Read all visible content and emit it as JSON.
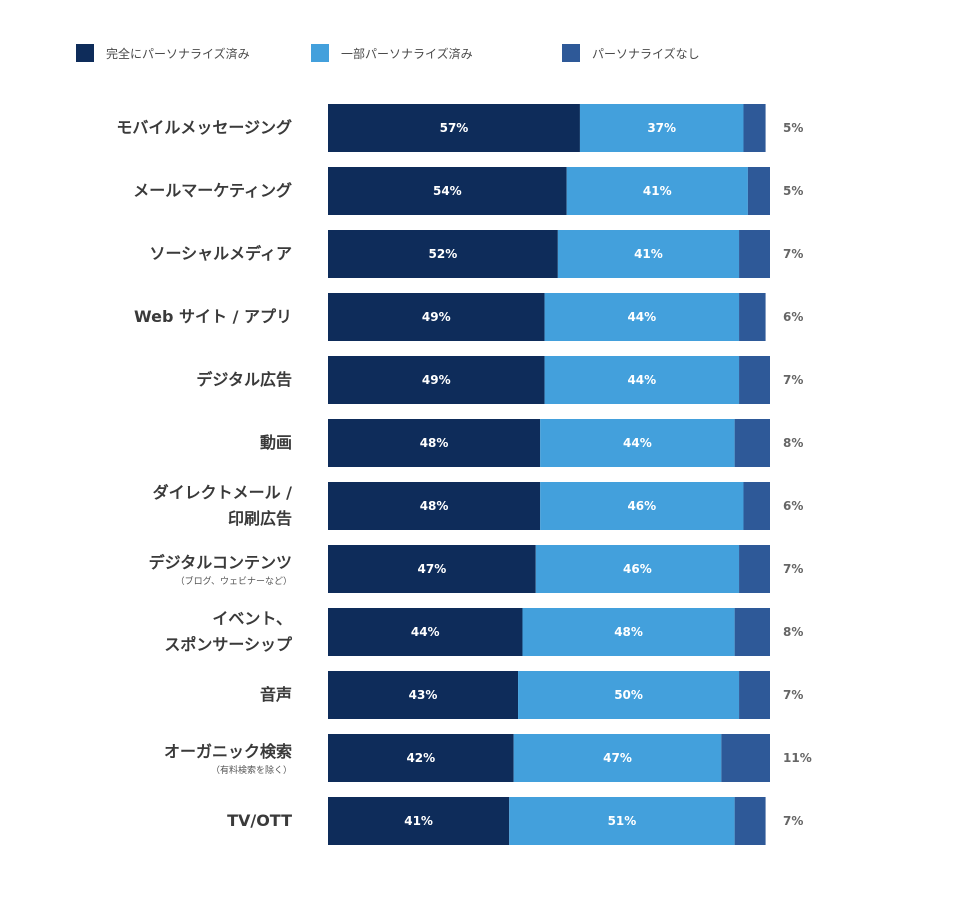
{
  "chart_data": {
    "type": "bar",
    "orientation": "horizontal",
    "stacked": true,
    "categories": [
      [
        "モバイルメッセージング"
      ],
      [
        "メールマーケティング"
      ],
      [
        "ソーシャルメディア"
      ],
      [
        "Web サイト / アプリ"
      ],
      [
        "デジタル広告"
      ],
      [
        "動画"
      ],
      [
        "ダイレクトメール /",
        "印刷広告"
      ],
      [
        "デジタルコンテンツ",
        "（ブログ、ウェビナーなど）"
      ],
      [
        "イベント、",
        "スポンサーシップ"
      ],
      [
        "音声"
      ],
      [
        "オーガニック検索",
        "（有料検索を除く）"
      ],
      [
        "TV/OTT"
      ]
    ],
    "category_sublabel_indices": [
      7,
      10
    ],
    "series": [
      {
        "name": "完全にパーソナライズ済み",
        "color": "#0e2c5a",
        "values": [
          57,
          54,
          52,
          49,
          49,
          48,
          48,
          47,
          44,
          43,
          42,
          41
        ]
      },
      {
        "name": "一部パーソナライズ済み",
        "color": "#43a0dc",
        "values": [
          37,
          41,
          41,
          44,
          44,
          44,
          46,
          46,
          48,
          50,
          47,
          51
        ]
      },
      {
        "name": "パーソナライズなし",
        "color": "#2e5998",
        "values": [
          5,
          5,
          7,
          6,
          7,
          8,
          6,
          7,
          8,
          7,
          11,
          7
        ]
      }
    ],
    "value_suffix": "%",
    "legend_position": "top-left",
    "grid": false,
    "xlim": [
      0,
      100
    ]
  }
}
